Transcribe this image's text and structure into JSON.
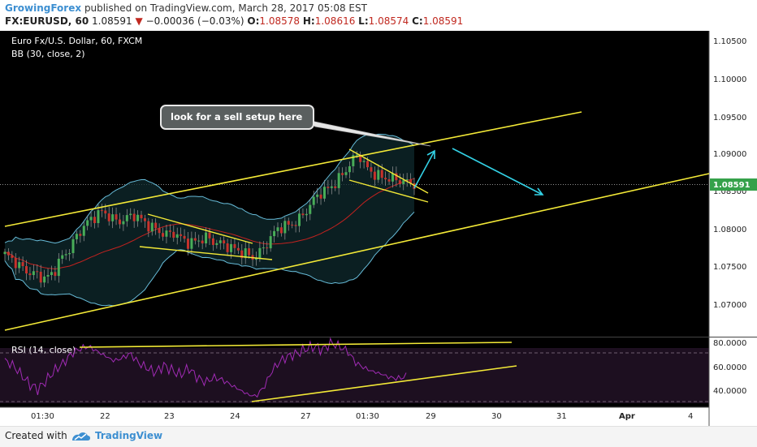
{
  "header": {
    "author": "GrowingForex",
    "published_text": "published on TradingView.com, March 28, 2017 05:08 EST",
    "symbol": "FX:EURUSD, 60",
    "last": "1.08591",
    "change": "−0.00036 (−0.03%)",
    "o_label": "O:",
    "o_value": "1.08578",
    "h_label": "H:",
    "h_value": "1.08616",
    "l_label": "L:",
    "l_value": "1.08574",
    "c_label": "C:",
    "c_value": "1.08591"
  },
  "chart": {
    "instrument": "Euro Fx/U.S. Dollar, 60, FXCM",
    "indicator": "BB (30, close, 2)",
    "rsi_label": "RSI (14, close)",
    "price_ticks": [
      "1.10500",
      "1.10000",
      "1.09500",
      "1.09000",
      "1.08500",
      "1.08000",
      "1.07500",
      "1.07000"
    ],
    "last_price_label": "1.08591",
    "rsi_ticks": [
      "80.0000",
      "60.0000",
      "40.0000"
    ],
    "time_ticks": [
      "01:30",
      "22",
      "23",
      "24",
      "27",
      "01:30",
      "29",
      "30",
      "31",
      "Apr",
      "4"
    ],
    "annotation": "look for a sell setup here"
  },
  "chart_data": {
    "type": "candlestick",
    "instrument": "Euro Fx/U.S. Dollar, 60, FXCM",
    "y_ticks": [
      1.105,
      1.1,
      1.095,
      1.09,
      1.085,
      1.08,
      1.075,
      1.07
    ],
    "ylim": [
      1.064,
      1.1065
    ],
    "last_close": 1.08591,
    "close_path": [
      1.0765,
      1.0758,
      1.0748,
      1.0741,
      1.0738,
      1.0733,
      1.074,
      1.076,
      1.0771,
      1.079,
      1.0805,
      1.0814,
      1.0822,
      1.0816,
      1.0808,
      1.0812,
      1.0818,
      1.0811,
      1.0803,
      1.0797,
      1.0791,
      1.0794,
      1.0786,
      1.078,
      1.0783,
      1.0788,
      1.0782,
      1.0779,
      1.0775,
      1.077,
      1.0766,
      1.076,
      1.077,
      1.0785,
      1.08,
      1.0803,
      1.0806,
      1.0815,
      1.083,
      1.0845,
      1.085,
      1.0858,
      1.087,
      1.0885,
      1.09,
      1.088,
      1.0872,
      1.0867,
      1.0866,
      1.0864,
      1.0861,
      1.0859
    ],
    "rsi_ticks": [
      80,
      60,
      40
    ],
    "rsi_ylim": [
      30,
      82
    ],
    "rsi_path": [
      64,
      60,
      52,
      44,
      40,
      48,
      56,
      62,
      70,
      74,
      76,
      72,
      68,
      64,
      66,
      70,
      62,
      58,
      54,
      60,
      56,
      52,
      58,
      50,
      46,
      50,
      48,
      44,
      40,
      36,
      34,
      42,
      56,
      64,
      68,
      70,
      74,
      76,
      73,
      79,
      76,
      72,
      62,
      58,
      55,
      53,
      50,
      49,
      51
    ]
  },
  "footer": {
    "created_with": "Created with",
    "brand": "TradingView"
  },
  "colors": {
    "background": "#000000",
    "trendline": "#f3e937",
    "bollinger": "#67bcd9",
    "midband": "#c3221f",
    "arrow": "#33d1e5",
    "rsi": "#a12bb5",
    "candle_up": "#48ad58",
    "candle_down": "#c8322c"
  }
}
